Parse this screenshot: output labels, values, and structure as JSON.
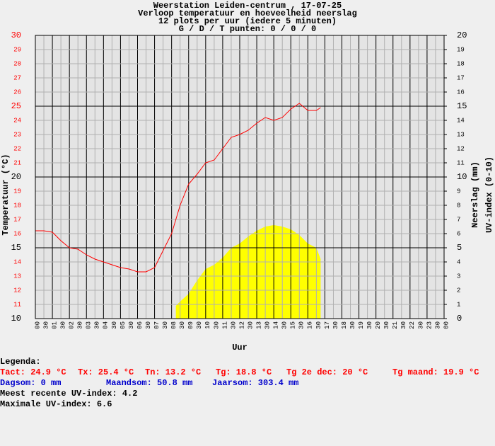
{
  "chart_data": {
    "type": "line",
    "title": [
      "Weerstation Leiden-centrum , 17-07-25",
      "Verloop temperatuur en hoeveelheid neerslag",
      "12 plots per uur (iedere 5 minuten)",
      "G / D / T punten: 0 / 0 / 0"
    ],
    "xlabel": "Uur",
    "ylabel": "Temperatuur (°C)",
    "y2label": [
      "Neerslag (mm)",
      "UV-index (0-10)"
    ],
    "xlim": [
      0,
      24
    ],
    "ylim": [
      10,
      30
    ],
    "y2lim": [
      0,
      20
    ],
    "xticks": [
      {
        "value": 0,
        "label": "00"
      },
      {
        "value": 0.5,
        "label": "30"
      },
      {
        "value": 1,
        "label": "01"
      },
      {
        "value": 1.5,
        "label": "30"
      },
      {
        "value": 2,
        "label": "02"
      },
      {
        "value": 2.5,
        "label": "30"
      },
      {
        "value": 3,
        "label": "03"
      },
      {
        "value": 3.5,
        "label": "30"
      },
      {
        "value": 4,
        "label": "04"
      },
      {
        "value": 4.5,
        "label": "30"
      },
      {
        "value": 5,
        "label": "05"
      },
      {
        "value": 5.5,
        "label": "30"
      },
      {
        "value": 6,
        "label": "06"
      },
      {
        "value": 6.5,
        "label": "30"
      },
      {
        "value": 7,
        "label": "07"
      },
      {
        "value": 7.5,
        "label": "30"
      },
      {
        "value": 8,
        "label": "08"
      },
      {
        "value": 8.5,
        "label": "30"
      },
      {
        "value": 9,
        "label": "09"
      },
      {
        "value": 9.5,
        "label": "30"
      },
      10,
      {
        "value": 10.5,
        "label": "30"
      },
      11,
      {
        "value": 11.5,
        "label": "30"
      },
      12,
      {
        "value": 12.5,
        "label": "30"
      },
      13,
      {
        "value": 13.5,
        "label": "30"
      },
      14,
      {
        "value": 14.5,
        "label": "30"
      },
      15,
      {
        "value": 15.5,
        "label": "30"
      },
      16,
      {
        "value": 16.5,
        "label": "30"
      },
      17,
      {
        "value": 17.5,
        "label": "30"
      },
      18,
      {
        "value": 18.5,
        "label": "30"
      },
      19,
      {
        "value": 19.5,
        "label": "30"
      },
      20,
      {
        "value": 20.5,
        "label": "30"
      },
      21,
      {
        "value": 21.5,
        "label": "30"
      },
      22,
      {
        "value": 22.5,
        "label": "30"
      },
      23,
      {
        "value": 23.5,
        "label": "30"
      },
      {
        "value": 24,
        "label": "00"
      }
    ],
    "yticks": [
      10,
      11,
      12,
      13,
      14,
      15,
      16,
      17,
      18,
      19,
      20,
      21,
      22,
      23,
      24,
      25,
      26,
      27,
      28,
      29,
      30
    ],
    "y2ticks": [
      0,
      1,
      2,
      3,
      4,
      5,
      6,
      7,
      8,
      9,
      10,
      11,
      12,
      13,
      14,
      15,
      16,
      17,
      18,
      19,
      20
    ],
    "grid": true,
    "series": [
      {
        "name": "UV-index",
        "color": "#ffff00",
        "axis": "y2",
        "fill": true,
        "x": [
          8.25,
          8.5,
          9,
          9.5,
          10,
          10.5,
          11,
          11.5,
          12,
          12.5,
          13,
          13.5,
          14,
          14.5,
          15,
          15.5,
          16,
          16.5,
          16.75
        ],
        "values": [
          0.9,
          1.2,
          1.75,
          2.7,
          3.5,
          3.8,
          4.3,
          5.0,
          5.3,
          5.8,
          6.2,
          6.5,
          6.6,
          6.5,
          6.3,
          5.9,
          5.3,
          5.0,
          4.2
        ]
      },
      {
        "name": "Temperatuur",
        "color": "#ff0000",
        "axis": "y",
        "x": [
          0,
          0.5,
          1,
          1.5,
          2,
          2.5,
          3,
          3.5,
          4,
          4.5,
          5,
          5.5,
          6,
          6.5,
          7,
          7.5,
          8,
          8.5,
          9,
          9.5,
          10,
          10.5,
          11,
          11.5,
          12,
          12.5,
          13,
          13.5,
          14,
          14.5,
          15,
          15.5,
          16,
          16.5,
          16.75
        ],
        "values": [
          16.2,
          16.2,
          16.1,
          15.5,
          15.0,
          14.9,
          14.5,
          14.2,
          14.0,
          13.8,
          13.6,
          13.5,
          13.3,
          13.3,
          13.6,
          14.8,
          16.0,
          18.0,
          19.5,
          20.2,
          21.0,
          21.2,
          22.0,
          22.8,
          23.0,
          23.3,
          23.8,
          24.2,
          24.0,
          24.2,
          24.8,
          25.2,
          24.7,
          24.7,
          24.9
        ]
      }
    ]
  },
  "legend": {
    "heading": "Legenda:",
    "lines": [
      [
        {
          "text": "Tact: 24.9 °C",
          "color": "#ff0000"
        },
        {
          "text": "Tx: 25.4 °C",
          "color": "#ff0000"
        },
        {
          "text": "Tn: 13.2 °C",
          "color": "#ff0000"
        },
        {
          "text": "Tg: 18.8 °C",
          "color": "#ff0000"
        },
        {
          "text": "Tg 2e dec: 20 °C",
          "color": "#ff0000"
        },
        {
          "text": "Tg maand: 19.9 °C",
          "color": "#ff0000"
        }
      ],
      [
        {
          "text": "Dagsom: 0 mm",
          "color": "#0000cc"
        },
        {
          "text": "Maandsom: 50.8 mm",
          "color": "#0000cc"
        },
        {
          "text": "Jaarsom: 303.4 mm",
          "color": "#0000cc"
        }
      ],
      [
        {
          "text": "Meest recente UV-index: 4.2",
          "color": "#000000"
        }
      ],
      [
        {
          "text": "Maximale UV-index: 6.6",
          "color": "#000000"
        }
      ]
    ]
  }
}
